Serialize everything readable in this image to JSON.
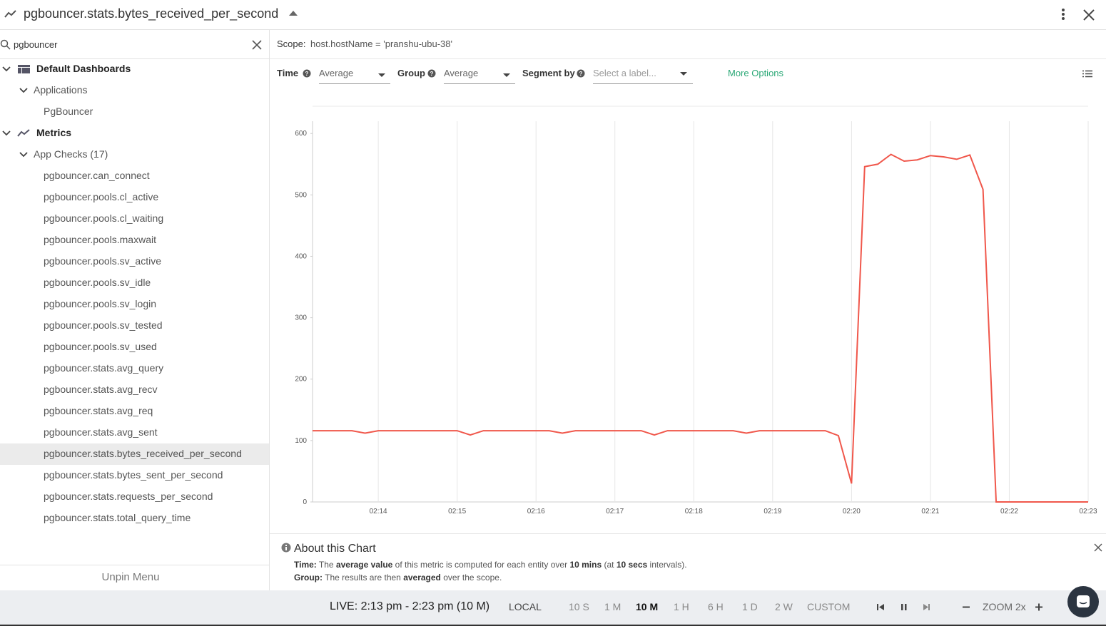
{
  "header": {
    "title": "pgbouncer.stats.bytes_received_per_second"
  },
  "sidebar": {
    "search": "pgbouncer",
    "unpin": "Unpin Menu",
    "tree": [
      {
        "label": "Default Dashboards",
        "children": [
          {
            "label": "Applications",
            "children": [
              {
                "label": "PgBouncer"
              }
            ]
          }
        ]
      },
      {
        "label": "Metrics",
        "children": [
          {
            "label": "App Checks (17)",
            "children": [
              {
                "label": "pgbouncer.can_connect"
              },
              {
                "label": "pgbouncer.pools.cl_active"
              },
              {
                "label": "pgbouncer.pools.cl_waiting"
              },
              {
                "label": "pgbouncer.pools.maxwait"
              },
              {
                "label": "pgbouncer.pools.sv_active"
              },
              {
                "label": "pgbouncer.pools.sv_idle"
              },
              {
                "label": "pgbouncer.pools.sv_login"
              },
              {
                "label": "pgbouncer.pools.sv_tested"
              },
              {
                "label": "pgbouncer.pools.sv_used"
              },
              {
                "label": "pgbouncer.stats.avg_query"
              },
              {
                "label": "pgbouncer.stats.avg_recv"
              },
              {
                "label": "pgbouncer.stats.avg_req"
              },
              {
                "label": "pgbouncer.stats.avg_sent"
              },
              {
                "label": "pgbouncer.stats.bytes_received_per_second",
                "selected": true
              },
              {
                "label": "pgbouncer.stats.bytes_sent_per_second"
              },
              {
                "label": "pgbouncer.stats.requests_per_second"
              },
              {
                "label": "pgbouncer.stats.total_query_time"
              }
            ]
          }
        ]
      }
    ]
  },
  "scope": {
    "label": "Scope:",
    "value": "host.hostName = 'pranshu-ubu-38'"
  },
  "toolbar": {
    "time_label": "Time",
    "time_value": "Average",
    "group_label": "Group",
    "group_value": "Average",
    "segment_label": "Segment by",
    "segment_value": "Select a label...",
    "more": "More Options"
  },
  "chart_data": {
    "type": "line",
    "color": "#f0574b",
    "x": [
      "02:13:10",
      "02:13:20",
      "02:13:30",
      "02:13:40",
      "02:13:50",
      "02:14:00",
      "02:14:10",
      "02:14:20",
      "02:14:30",
      "02:14:40",
      "02:14:50",
      "02:15:00",
      "02:15:10",
      "02:15:20",
      "02:15:30",
      "02:15:40",
      "02:15:50",
      "02:16:00",
      "02:16:10",
      "02:16:20",
      "02:16:30",
      "02:16:40",
      "02:16:50",
      "02:17:00",
      "02:17:10",
      "02:17:20",
      "02:17:30",
      "02:17:40",
      "02:17:50",
      "02:18:00",
      "02:18:10",
      "02:18:20",
      "02:18:30",
      "02:18:40",
      "02:18:50",
      "02:19:00",
      "02:19:10",
      "02:19:20",
      "02:19:30",
      "02:19:40",
      "02:19:50",
      "02:20:00",
      "02:20:10",
      "02:20:20",
      "02:20:30",
      "02:20:40",
      "02:20:50",
      "02:21:00",
      "02:21:10",
      "02:21:20",
      "02:21:30",
      "02:21:40",
      "02:21:50",
      "02:22:00",
      "02:22:10",
      "02:22:20",
      "02:22:30",
      "02:22:40",
      "02:22:50",
      "02:23:00"
    ],
    "values": [
      116,
      116,
      116,
      116,
      112,
      116,
      116,
      116,
      116,
      116,
      116,
      116,
      109,
      116,
      116,
      116,
      116,
      116,
      116,
      112,
      116,
      116,
      116,
      116,
      116,
      116,
      109,
      116,
      116,
      116,
      116,
      116,
      116,
      112,
      116,
      116,
      116,
      116,
      116,
      116,
      108,
      30,
      546,
      550,
      566,
      555,
      557,
      564,
      562,
      558,
      565,
      509,
      0,
      0,
      0,
      0,
      0,
      0,
      0,
      0
    ],
    "xlim": [
      "02:13:10",
      "02:23:00"
    ],
    "xticks": [
      "02:14",
      "02:15",
      "02:16",
      "02:17",
      "02:18",
      "02:19",
      "02:20",
      "02:21",
      "02:22",
      "02:23"
    ],
    "ylim": [
      0,
      620
    ],
    "yticks": [
      0,
      100,
      200,
      300,
      400,
      500,
      600
    ],
    "grid": true
  },
  "about": {
    "title": "About this Chart",
    "lines": [
      [
        {
          "text": "Time:",
          "bold": true
        },
        {
          "text": " The "
        },
        {
          "text": "average value",
          "bold": true
        },
        {
          "text": " of this metric is computed for each entity over "
        },
        {
          "text": "10 mins",
          "bold": true
        },
        {
          "text": " (at "
        },
        {
          "text": "10 secs",
          "bold": true
        },
        {
          "text": " intervals)."
        }
      ],
      [
        {
          "text": "Group:",
          "bold": true
        },
        {
          "text": " The results are then "
        },
        {
          "text": "averaged",
          "bold": true
        },
        {
          "text": " over the scope."
        }
      ]
    ]
  },
  "bottombar": {
    "live": "LIVE: 2:13 pm - 2:23 pm (10 M)",
    "zone": "LOCAL",
    "ranges": [
      "10 S",
      "1 M",
      "10 M",
      "1 H",
      "6 H",
      "1 D",
      "2 W",
      "CUSTOM"
    ],
    "active": 2,
    "zoom": "ZOOM 2x"
  }
}
